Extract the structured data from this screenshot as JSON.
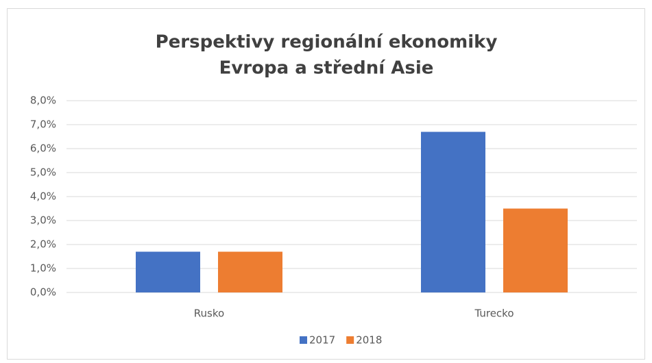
{
  "chart_data": {
    "type": "bar",
    "title": "Perspektivy regionální ekonomiky",
    "subtitle": "Evropa a střední Asie",
    "categories": [
      "Rusko",
      "Turecko"
    ],
    "series": [
      {
        "name": "2017",
        "color": "#4472c4",
        "values": [
          1.7,
          6.7
        ]
      },
      {
        "name": "2018",
        "color": "#ed7d31",
        "values": [
          1.7,
          3.5
        ]
      }
    ],
    "ylim": [
      0,
      8
    ],
    "yticks": [
      {
        "value": 0,
        "label": "0,0%"
      },
      {
        "value": 1,
        "label": "1,0%"
      },
      {
        "value": 2,
        "label": "2,0%"
      },
      {
        "value": 3,
        "label": "3,0%"
      },
      {
        "value": 4,
        "label": "4,0%"
      },
      {
        "value": 5,
        "label": "5,0%"
      },
      {
        "value": 6,
        "label": "6,0%"
      },
      {
        "value": 7,
        "label": "7,0%"
      },
      {
        "value": 8,
        "label": "8,0%"
      }
    ],
    "grid": true,
    "legend": "bottom"
  }
}
